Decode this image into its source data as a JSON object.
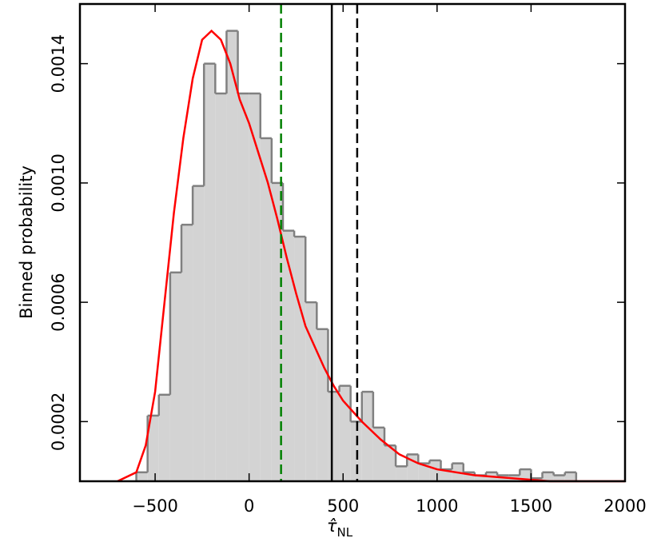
{
  "chart_data": {
    "type": "histogram",
    "xlabel": {
      "symbol": "τ̂",
      "subscript": "NL"
    },
    "ylabel": "Binned probability",
    "xlim": [
      -900,
      2000
    ],
    "ylim": [
      0,
      0.0016
    ],
    "xticks": [
      {
        "value": -500,
        "label": "−500"
      },
      0,
      500,
      1000,
      1500,
      2000
    ],
    "yticks": [
      0.0002,
      0.0006,
      {
        "value": 0.001,
        "label": "0.0010"
      },
      0.0014
    ],
    "bins": [
      -600,
      -540,
      -480,
      -420,
      -360,
      -300,
      -240,
      -180,
      -120,
      -60,
      0,
      60,
      120,
      180,
      240,
      300,
      360,
      420,
      480,
      540,
      600,
      660,
      720,
      780,
      840,
      900,
      960,
      1020,
      1080,
      1140,
      1200,
      1260,
      1320,
      1380,
      1440,
      1500,
      1560,
      1620,
      1680,
      1740
    ],
    "values": [
      3e-05,
      0.00022,
      0.00029,
      0.0007,
      0.00086,
      0.00099,
      0.0014,
      0.0013,
      0.00151,
      0.0013,
      0.0013,
      0.00115,
      0.001,
      0.00084,
      0.00082,
      0.0006,
      0.00051,
      0.0003,
      0.00032,
      0.0002,
      0.0003,
      0.00018,
      0.00012,
      5e-05,
      9e-05,
      6e-05,
      7e-05,
      4e-05,
      6e-05,
      3e-05,
      2e-05,
      3e-05,
      2e-05,
      2e-05,
      4e-05,
      1e-05,
      3e-05,
      2e-05,
      3e-05
    ],
    "color": "#d3d3d3",
    "edge_color": "#808080",
    "curve": {
      "color": "#ff0000",
      "x": [
        -700,
        -600,
        -550,
        -500,
        -450,
        -400,
        -350,
        -300,
        -250,
        -200,
        -150,
        -100,
        -50,
        0,
        50,
        100,
        150,
        200,
        250,
        300,
        350,
        400,
        450,
        500,
        600,
        700,
        800,
        900,
        1000,
        1200,
        1400,
        1600,
        1800,
        2000
      ],
      "values": [
        0,
        3e-05,
        0.00012,
        0.0003,
        0.0006,
        0.0009,
        0.00115,
        0.00135,
        0.00148,
        0.00151,
        0.00148,
        0.0014,
        0.00128,
        0.0012,
        0.0011,
        0.001,
        0.00088,
        0.00075,
        0.00063,
        0.00052,
        0.00045,
        0.00038,
        0.00032,
        0.00027,
        0.0002,
        0.00014,
        9e-05,
        6e-05,
        4e-05,
        2e-05,
        1e-05,
        0,
        0,
        0
      ]
    },
    "vlines": [
      {
        "x": 170,
        "color": "#008000",
        "style": "dashed"
      },
      {
        "x": 440,
        "color": "#000000",
        "style": "solid"
      },
      {
        "x": 575,
        "color": "#000000",
        "style": "dashed"
      }
    ]
  }
}
